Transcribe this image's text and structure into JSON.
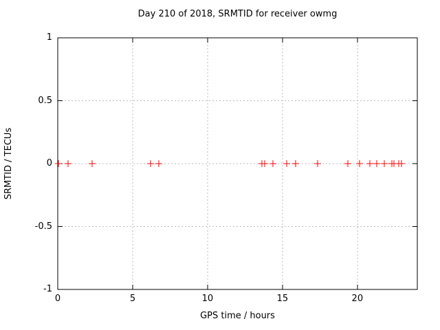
{
  "chart_data": {
    "type": "scatter",
    "title": "Day 210 of 2018, SRMTID for receiver owmg",
    "xlabel": "GPS time / hours",
    "ylabel": "SRMTID / TECUs",
    "xlim": [
      0,
      24
    ],
    "ylim": [
      -1,
      1
    ],
    "x_ticks": [
      0,
      5,
      10,
      15,
      20
    ],
    "y_ticks": [
      -1,
      -0.5,
      0,
      0.5,
      1
    ],
    "grid": true,
    "legend": "none",
    "marker": {
      "shape": "plus",
      "size": 10,
      "color": "#ff0000"
    },
    "series": [
      {
        "name": "SRMTID",
        "x": [
          0.05,
          0.7,
          2.3,
          6.2,
          6.75,
          13.65,
          13.8,
          14.35,
          15.3,
          15.9,
          17.35,
          19.35,
          20.15,
          20.85,
          21.3,
          21.8,
          22.3,
          22.45,
          22.75,
          22.95
        ],
        "y": [
          0,
          0,
          0,
          0,
          0,
          0,
          0,
          0,
          0,
          0,
          0,
          0,
          0,
          0,
          0,
          0,
          0,
          0,
          0,
          0
        ]
      }
    ]
  },
  "colors": {
    "marker": "#ff0000",
    "grid": "#bbbbbb",
    "border": "#000000",
    "background": "#ffffff",
    "text": "#000000"
  }
}
